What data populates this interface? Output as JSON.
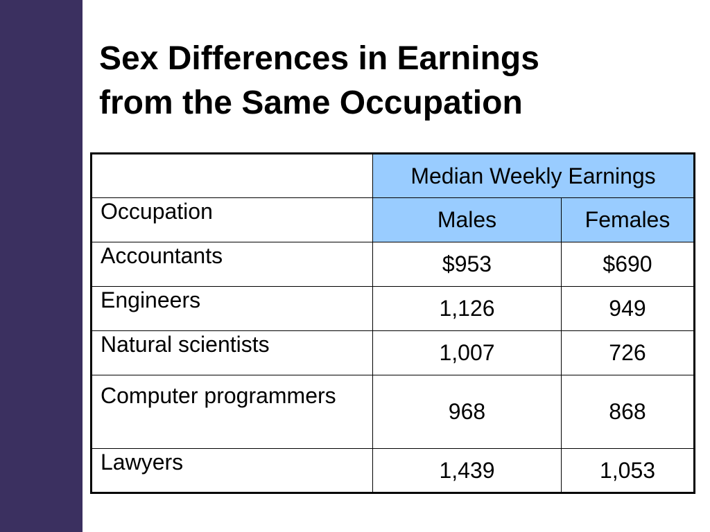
{
  "slide": {
    "title_line1": "Sex Differences in Earnings",
    "title_line2": "from the Same Occupation",
    "colors": {
      "side_bar": "#3b3060",
      "header_fill": "#99ccff"
    }
  },
  "table": {
    "group_header": "Median Weekly Earnings",
    "col_occupation": "Occupation",
    "col_males": "Males",
    "col_females": "Females",
    "rows": [
      {
        "occupation": "Accountants",
        "males": "$953",
        "females": "$690"
      },
      {
        "occupation": "Engineers",
        "males": "1,126",
        "females": "949"
      },
      {
        "occupation": "Natural scientists",
        "males": "1,007",
        "females": "726"
      },
      {
        "occupation": "Computer programmers",
        "males": "968",
        "females": "868"
      },
      {
        "occupation": "Lawyers",
        "males": "1,439",
        "females": "1,053"
      }
    ]
  }
}
